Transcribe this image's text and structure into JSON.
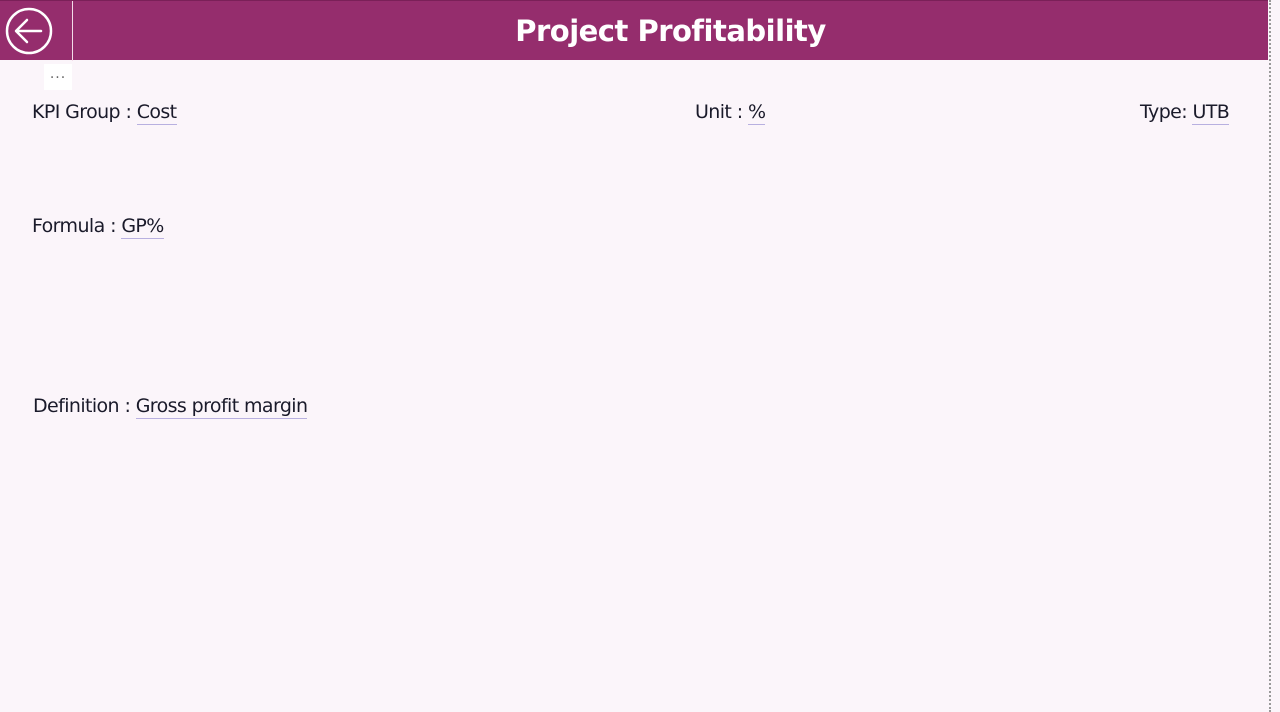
{
  "header": {
    "title": "Project Profitability",
    "back_icon": "arrow-left-circle-icon",
    "color": "#952d6d"
  },
  "more_options": "...",
  "fields": {
    "kpi_group": {
      "label": "KPI Group : ",
      "value": "Cost"
    },
    "unit": {
      "label": "Unit : ",
      "value": "%"
    },
    "type": {
      "label": "Type: ",
      "value": "UTB"
    },
    "formula": {
      "label": "Formula : ",
      "value": "GP%"
    },
    "definition": {
      "label": "Definition : ",
      "value": "Gross profit margin"
    }
  }
}
